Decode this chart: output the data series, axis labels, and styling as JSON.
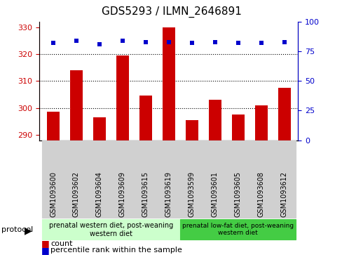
{
  "title": "GDS5293 / ILMN_2646891",
  "samples": [
    "GSM1093600",
    "GSM1093602",
    "GSM1093604",
    "GSM1093609",
    "GSM1093615",
    "GSM1093619",
    "GSM1093599",
    "GSM1093601",
    "GSM1093605",
    "GSM1093608",
    "GSM1093612"
  ],
  "counts": [
    298.5,
    314.0,
    296.5,
    319.5,
    304.5,
    330.0,
    295.5,
    303.0,
    297.5,
    301.0,
    307.5
  ],
  "percentiles": [
    82,
    84,
    81,
    84,
    83,
    83,
    82,
    83,
    82,
    82,
    83
  ],
  "ylim_left": [
    288,
    332
  ],
  "ylim_right": [
    0,
    100
  ],
  "yticks_left": [
    290,
    300,
    310,
    320,
    330
  ],
  "yticks_right": [
    0,
    25,
    50,
    75,
    100
  ],
  "bar_color": "#cc0000",
  "dot_color": "#0000cc",
  "group1_label": "prenatal western diet, post-weaning\nwestern diet",
  "group2_label": "prenatal low-fat diet, post-weaning\nwestern diet",
  "group1_color": "#ccffcc",
  "group2_color": "#44cc44",
  "group1_count": 6,
  "group2_count": 5,
  "legend_count_label": "count",
  "legend_percentile_label": "percentile rank within the sample",
  "protocol_label": "protocol",
  "xticklabel_bg": "#d0d0d0",
  "plot_bg_color": "#ffffff"
}
